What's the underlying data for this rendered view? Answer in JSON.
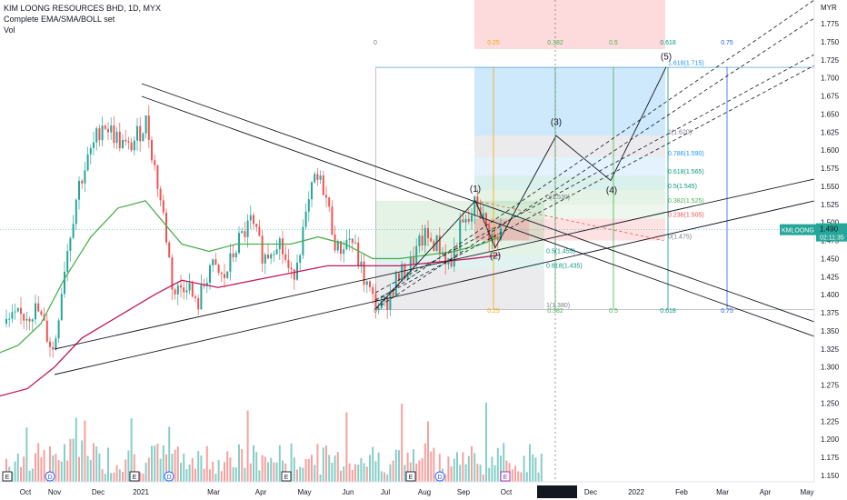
{
  "header": {
    "symbol_line": "KIM LOONG RESOURCES BHD, 1D, MYX",
    "indicator_line": "Complete EMA/SMA/BOLL set",
    "volume_line": "Vol",
    "currency": "MYR"
  },
  "price_badge": {
    "ticker": "KMLOONG",
    "price": "1.490",
    "countdown": "02:11:35"
  },
  "chart_data": {
    "type": "candlestick",
    "title": "KIM LOONG RESOURCES BHD, 1D, MYX",
    "y_ticks": [
      "1.775",
      "1.750",
      "1.725",
      "1.700",
      "1.675",
      "1.650",
      "1.625",
      "1.600",
      "1.575",
      "1.550",
      "1.525",
      "1.500",
      "1.475",
      "1.450",
      "1.425",
      "1.400",
      "1.375",
      "1.350",
      "1.325",
      "1.300",
      "1.275",
      "1.250",
      "1.225",
      "1.200",
      "1.175",
      "1.150"
    ],
    "x_ticks": [
      "Oct",
      "Nov",
      "Dec",
      "2021",
      "Mar",
      "Apr",
      "May",
      "Jun",
      "Jul",
      "Aug",
      "Sep",
      "Oct",
      "08 Nov '21",
      "Dec",
      "2022",
      "Feb",
      "Mar",
      "Apr",
      "May"
    ],
    "ylim": [
      1.14,
      1.78
    ],
    "fib_retracement_labels": [
      "1.618(1.715)",
      "1(1.620)",
      "0.786(1.590)",
      "0.618(1.565)",
      "0.5(1.545)",
      "0.382(1.525)",
      "0.236(1.505)",
      "0(1.475)"
    ],
    "fib_retracement_values": [
      1.715,
      1.62,
      1.59,
      1.565,
      1.545,
      1.525,
      1.505,
      1.475
    ],
    "fib_box_labels": [
      "0(1.530)",
      "0.5(1.455)",
      "0.618(1.435)",
      "1(1.380)"
    ],
    "fib_box_values": [
      1.53,
      1.455,
      1.435,
      1.38
    ],
    "fib_time_labels": [
      "0",
      "0.25",
      "0.382",
      "0.5",
      "0.618",
      "0.75"
    ],
    "elliott_waves": [
      {
        "label": "(1)",
        "price": 1.53
      },
      {
        "label": "(2)",
        "price": 1.465
      },
      {
        "label": "(3)",
        "price": 1.62
      },
      {
        "label": "(4)",
        "price": 1.558
      },
      {
        "label": "(5)",
        "price": 1.715
      }
    ],
    "last_price": 1.49
  },
  "events": [
    "E",
    "D",
    "E",
    "D",
    "E",
    "E",
    "D",
    "E"
  ]
}
